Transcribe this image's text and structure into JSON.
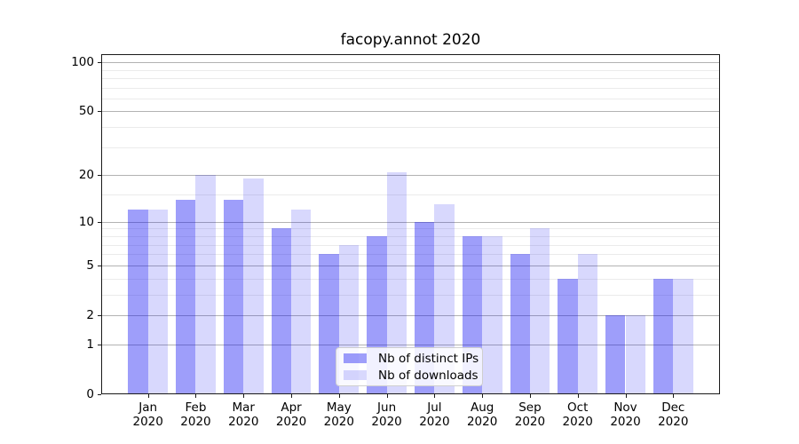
{
  "chart_data": {
    "type": "bar",
    "title": "facopy.annot 2020",
    "categories": [
      "Jan",
      "Feb",
      "Mar",
      "Apr",
      "May",
      "Jun",
      "Jul",
      "Aug",
      "Sep",
      "Oct",
      "Nov",
      "Dec"
    ],
    "category_year": "2020",
    "series": [
      {
        "key": "distinct-ips",
        "name": "Nb of distinct IPs",
        "color": "rgba(13, 13, 242, 0.40)",
        "values": [
          12,
          14,
          14,
          9,
          6,
          8,
          10,
          8,
          6,
          4,
          2,
          4
        ]
      },
      {
        "key": "downloads",
        "name": "Nb of downloads",
        "color": "rgba(13, 13, 242, 0.16)",
        "values": [
          12,
          20,
          19,
          12,
          7,
          21,
          13,
          8,
          9,
          6,
          2,
          4
        ]
      }
    ],
    "xlabel": "",
    "ylabel": "",
    "yscale": "log1p",
    "ylim": [
      0,
      112
    ],
    "y_major_ticks": [
      0,
      1,
      2,
      5,
      10,
      20,
      50,
      100
    ],
    "y_minor_ticks": [
      3,
      4,
      6,
      7,
      8,
      9,
      15,
      30,
      40,
      60,
      70,
      80,
      90
    ],
    "grid": true,
    "legend_position": "lower center"
  }
}
